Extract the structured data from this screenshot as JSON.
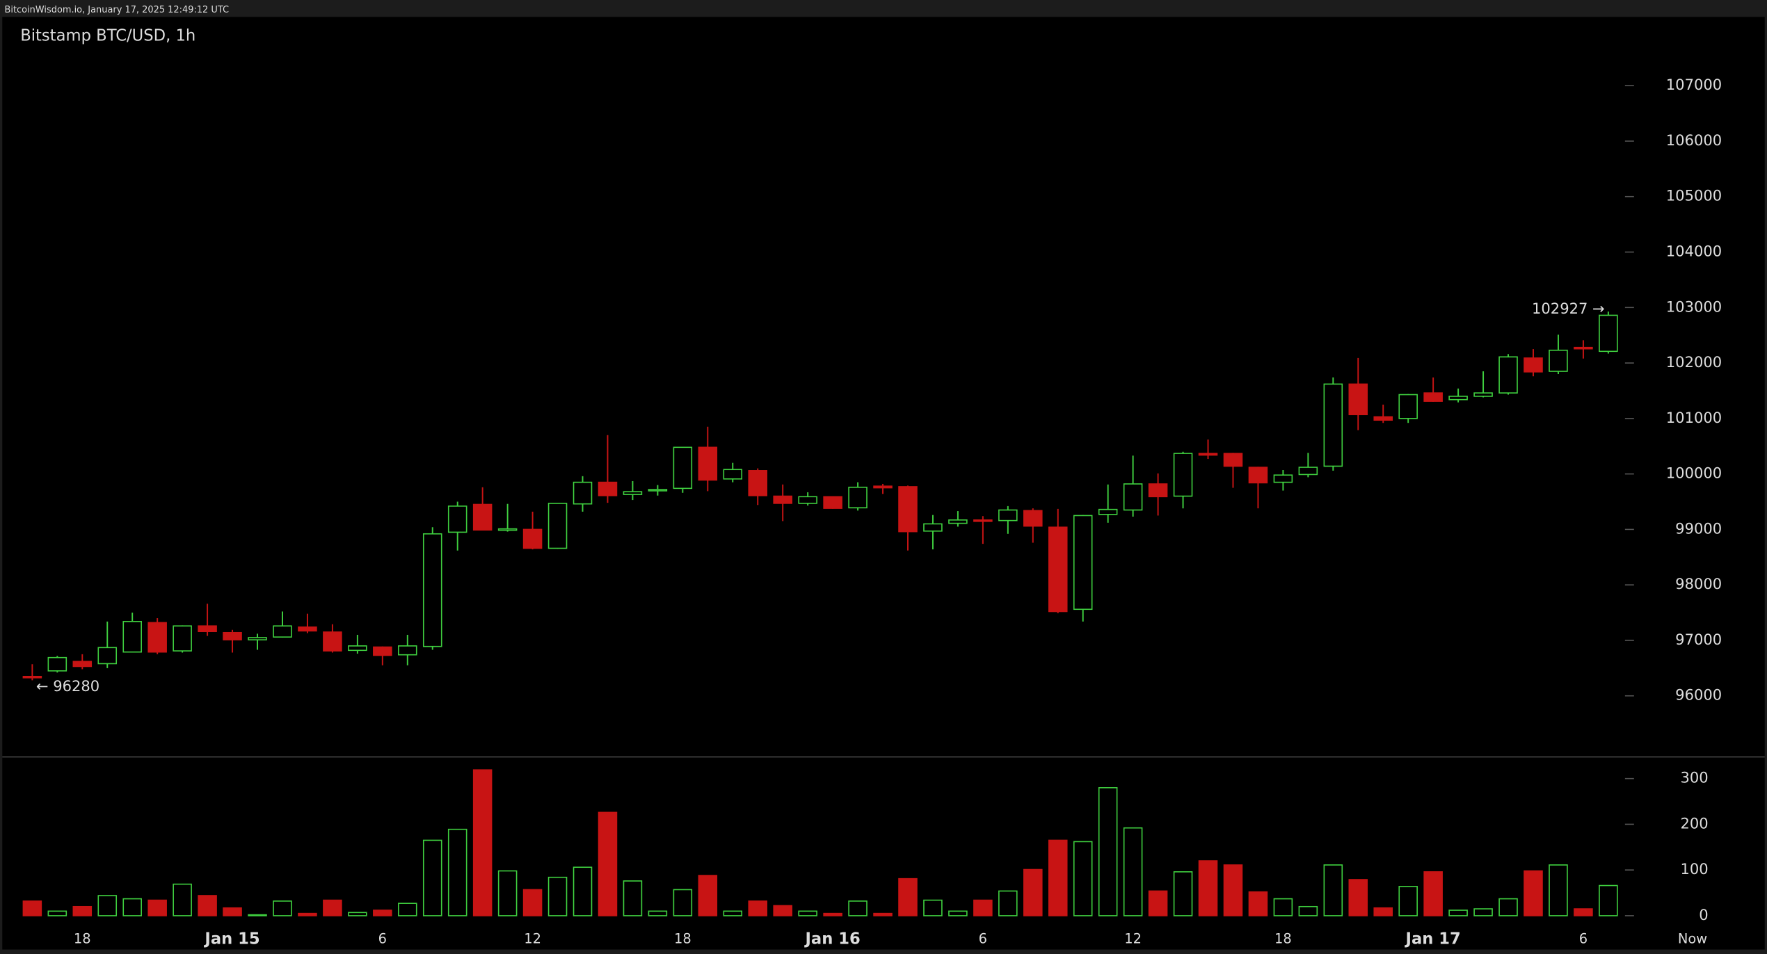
{
  "header": "BitcoinWisdom.io, January 17, 2025 12:49:12 UTC",
  "chart_data": {
    "type": "candlestick",
    "title": "Bitstamp BTC/USD, 1h",
    "categories": [
      null,
      null,
      "18",
      null,
      null,
      null,
      null,
      null,
      "Jan 15",
      null,
      null,
      null,
      null,
      null,
      "6",
      null,
      null,
      null,
      null,
      null,
      "12",
      null,
      null,
      null,
      null,
      null,
      "18",
      null,
      null,
      null,
      null,
      null,
      "Jan 16",
      null,
      null,
      null,
      null,
      null,
      "6",
      null,
      null,
      null,
      null,
      null,
      "12",
      null,
      null,
      null,
      null,
      null,
      "18",
      null,
      null,
      null,
      null,
      null,
      "Jan 17",
      null,
      null,
      null,
      null,
      null,
      "6",
      null
    ],
    "now_label": "Now",
    "up_color": "#3fcf3f",
    "down_color": "#c81414",
    "open": [
      96350,
      96450,
      96620,
      96580,
      96790,
      97320,
      96810,
      97260,
      97140,
      97010,
      97060,
      97240,
      97150,
      96820,
      96880,
      96740,
      96890,
      98950,
      99450,
      98990,
      99000,
      98660,
      99460,
      99850,
      99630,
      99700,
      99740,
      100480,
      99910,
      100060,
      99600,
      99470,
      99590,
      99390,
      99780,
      99770,
      98970,
      99110,
      99170,
      99160,
      99340,
      99040,
      97560,
      99270,
      99350,
      99820,
      99600,
      100370,
      100370,
      100120,
      99850,
      99990,
      100140,
      101620,
      101030,
      101000,
      101460,
      101340,
      101400,
      101460,
      102090,
      101850,
      102280,
      102210
    ],
    "high": [
      96570,
      96720,
      96750,
      97340,
      97500,
      97400,
      97270,
      97660,
      97190,
      97120,
      97520,
      97480,
      97290,
      97100,
      96890,
      97100,
      99040,
      99500,
      99760,
      99460,
      99320,
      99470,
      99960,
      100700,
      99870,
      99800,
      100480,
      100850,
      100200,
      100100,
      99810,
      99670,
      99600,
      99850,
      99820,
      99790,
      99260,
      99330,
      99240,
      99420,
      99380,
      99370,
      99260,
      99810,
      100330,
      100010,
      100400,
      100620,
      100380,
      100130,
      100070,
      100380,
      101740,
      102090,
      101250,
      101440,
      101740,
      101540,
      101850,
      102160,
      102250,
      102510,
      102410,
      102927
    ],
    "low": [
      96280,
      96420,
      96480,
      96500,
      96780,
      96750,
      96780,
      97080,
      96780,
      96830,
      97050,
      97130,
      96780,
      96760,
      96550,
      96550,
      96830,
      98620,
      98990,
      98960,
      98640,
      98650,
      99320,
      99480,
      99530,
      99610,
      99660,
      99690,
      99850,
      99440,
      99150,
      99430,
      99370,
      99340,
      99640,
      98620,
      98640,
      99050,
      98740,
      98920,
      98760,
      97490,
      97340,
      99120,
      99230,
      99250,
      99380,
      100270,
      99750,
      99380,
      99700,
      99940,
      100060,
      100790,
      100920,
      100920,
      101300,
      101290,
      101380,
      101430,
      101760,
      101800,
      102080,
      102170
    ],
    "close": [
      96330,
      96690,
      96530,
      96870,
      97340,
      96790,
      97260,
      97160,
      97010,
      97050,
      97260,
      97170,
      96810,
      96900,
      96730,
      96900,
      98920,
      99420,
      98990,
      99010,
      98660,
      99470,
      99850,
      99610,
      99680,
      99720,
      100480,
      99890,
      100080,
      99610,
      99470,
      99590,
      99380,
      99760,
      99750,
      98960,
      99100,
      99170,
      99150,
      99350,
      99060,
      97520,
      99250,
      99360,
      99820,
      99590,
      100370,
      100340,
      100140,
      99840,
      99980,
      100120,
      101620,
      101070,
      100970,
      101430,
      101310,
      101400,
      101460,
      102110,
      101840,
      102230,
      102260,
      102860
    ],
    "volume": [
      32,
      10,
      20,
      44,
      37,
      34,
      69,
      44,
      17,
      2,
      32,
      5,
      34,
      7,
      12,
      27,
      165,
      189,
      319,
      98,
      57,
      84,
      106,
      226,
      76,
      10,
      57,
      88,
      10,
      32,
      22,
      10,
      5,
      32,
      5,
      81,
      34,
      10,
      34,
      54,
      101,
      165,
      162,
      280,
      192,
      54,
      96,
      120,
      111,
      52,
      37,
      20,
      111,
      79,
      17,
      64,
      96,
      12,
      15,
      37,
      98,
      111,
      15,
      66
    ],
    "ylim": [
      94940,
      107630
    ],
    "yticks": [
      96000,
      97000,
      98000,
      99000,
      100000,
      101000,
      102000,
      103000,
      104000,
      105000,
      106000,
      107000
    ],
    "volume_ylim": [
      0,
      340
    ],
    "volume_yticks": [
      0,
      100,
      200,
      300
    ],
    "annotations": [
      {
        "value": 96280,
        "label": "← 96280"
      },
      {
        "value": 102927,
        "label": "102927 →"
      }
    ]
  }
}
